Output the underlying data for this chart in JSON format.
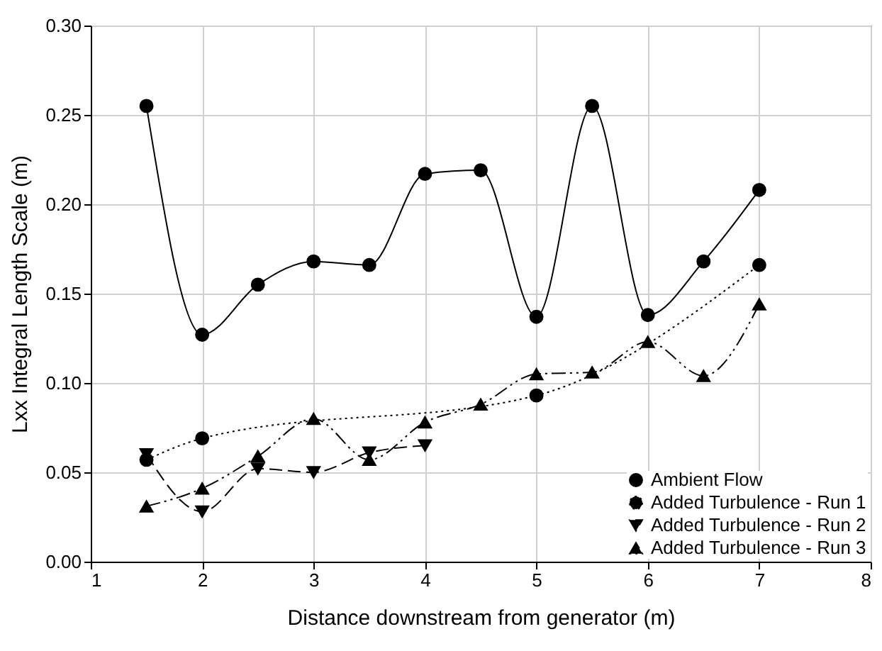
{
  "chart_data": {
    "type": "line",
    "xlabel": "Distance downstream from generator (m)",
    "ylabel": "Lxx Integral Length Scale (m)",
    "xlim": [
      1,
      8
    ],
    "xticks": [
      1,
      2,
      3,
      4,
      5,
      6,
      7,
      8
    ],
    "ylim": [
      0,
      0.3
    ],
    "yticks": [
      {
        "value": 0,
        "label": "0.00"
      },
      {
        "value": 0.05,
        "label": "0.05"
      },
      {
        "value": 0.1,
        "label": "0.10"
      },
      {
        "value": 0.15,
        "label": "0.15"
      },
      {
        "value": 0.2,
        "label": "0.20"
      },
      {
        "value": 0.25,
        "label": "0.25"
      },
      {
        "value": 0.3,
        "label": "0.30"
      }
    ],
    "grid": true,
    "legend": "bottom right",
    "series": [
      {
        "name": "Ambient Flow",
        "color": "#000000",
        "marker": "circle",
        "line_style": "solid",
        "x": [
          1.5,
          2,
          2.5,
          3,
          3.5,
          4,
          4.5,
          5,
          5.5,
          6,
          6.5,
          7
        ],
        "values": [
          0.255,
          0.127,
          0.155,
          0.168,
          0.166,
          0.217,
          0.219,
          0.137,
          0.255,
          0.138,
          0.168,
          0.208
        ]
      },
      {
        "name": "Added Turbulence - Run 1",
        "color": "#000000",
        "marker": "circle",
        "line_style": "dotted",
        "x": [
          1.5,
          2,
          5,
          7
        ],
        "values": [
          0.057,
          0.069,
          0.093,
          0.166
        ]
      },
      {
        "name": "Added Turbulence - Run 2",
        "color": "#000000",
        "marker": "triangle-down",
        "line_style": "dashed",
        "x": [
          1.5,
          2,
          2.5,
          3,
          3.5,
          4
        ],
        "values": [
          0.06,
          0.028,
          0.052,
          0.05,
          0.061,
          0.065
        ]
      },
      {
        "name": "Added Turbulence - Run 3",
        "color": "#000000",
        "marker": "triangle",
        "line_style": "dashdot",
        "x": [
          1.5,
          2,
          2.5,
          3,
          3.5,
          4,
          4.5,
          5,
          5.5,
          6,
          6.5,
          7
        ],
        "values": [
          0.031,
          0.041,
          0.059,
          0.08,
          0.057,
          0.078,
          0.088,
          0.105,
          0.106,
          0.123,
          0.104,
          0.144
        ]
      }
    ]
  }
}
